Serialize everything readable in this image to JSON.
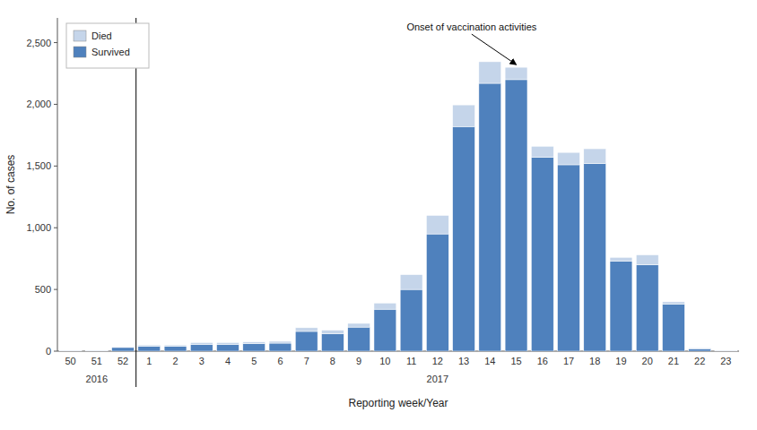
{
  "chart_data": {
    "type": "bar",
    "stacked": true,
    "categories": [
      "50",
      "51",
      "52",
      "1",
      "2",
      "3",
      "4",
      "5",
      "6",
      "7",
      "8",
      "9",
      "10",
      "11",
      "12",
      "13",
      "14",
      "15",
      "16",
      "17",
      "18",
      "19",
      "20",
      "21",
      "22",
      "23"
    ],
    "series": [
      {
        "name": "Survived",
        "color": "#4F81BD",
        "values": [
          5,
          5,
          30,
          40,
          40,
          55,
          55,
          60,
          65,
          160,
          140,
          195,
          340,
          500,
          950,
          1820,
          2170,
          2200,
          1570,
          1510,
          1520,
          730,
          700,
          380,
          20,
          5
        ]
      },
      {
        "name": "Died",
        "color": "#C5D5EA",
        "values": [
          2,
          2,
          5,
          10,
          10,
          15,
          15,
          15,
          15,
          30,
          30,
          30,
          50,
          120,
          150,
          175,
          175,
          100,
          90,
          100,
          120,
          30,
          80,
          20,
          5,
          2
        ]
      }
    ],
    "x_label": "Reporting week/Year",
    "y_label": "No. of cases",
    "ylim": [
      0,
      2700
    ],
    "yticks": [
      0,
      500,
      {
        "value": 1000,
        "label": "1,000"
      },
      {
        "value": 1500,
        "label": "1,500"
      },
      {
        "value": 2000,
        "label": "2,000"
      },
      {
        "value": 2500,
        "label": "2,500"
      }
    ],
    "x_groups": [
      {
        "label": "2016",
        "first": "50",
        "last": "52"
      },
      {
        "label": "2017",
        "first": "1",
        "last": "23"
      }
    ],
    "annotations": [
      {
        "text": "Onset of vaccination activities",
        "category": "15"
      }
    ],
    "legend": "upper left",
    "grid": false
  }
}
